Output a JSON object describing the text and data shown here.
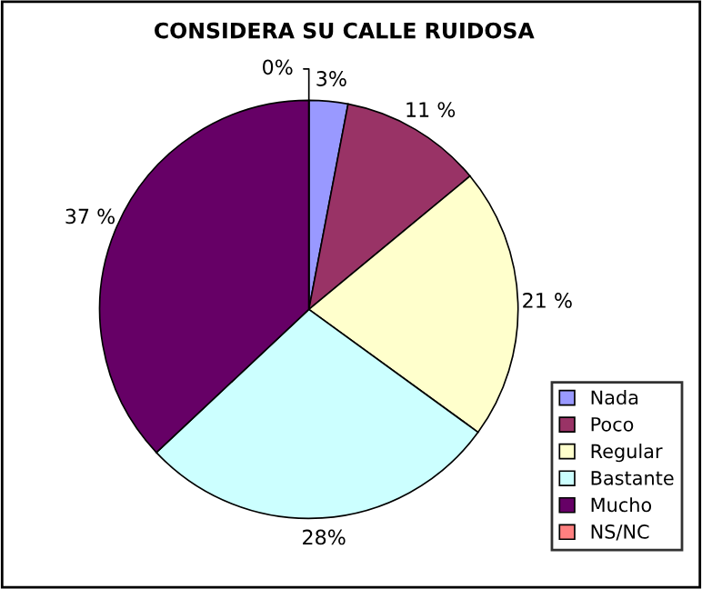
{
  "chart_data": {
    "type": "pie",
    "title": "CONSIDERA SU CALLE RUIDOSA",
    "categories": [
      "Nada",
      "Poco",
      "Regular",
      "Bastante",
      "Mucho",
      "NS/NC"
    ],
    "values": [
      3,
      11,
      21,
      28,
      37,
      0
    ],
    "colors": [
      "#9999ff",
      "#993366",
      "#ffffcc",
      "#ccffff",
      "#660066",
      "#ff8080"
    ],
    "value_labels": [
      "3%",
      "11 %",
      "21 %",
      "28%",
      "37 %",
      "0%"
    ],
    "legend": "right"
  }
}
